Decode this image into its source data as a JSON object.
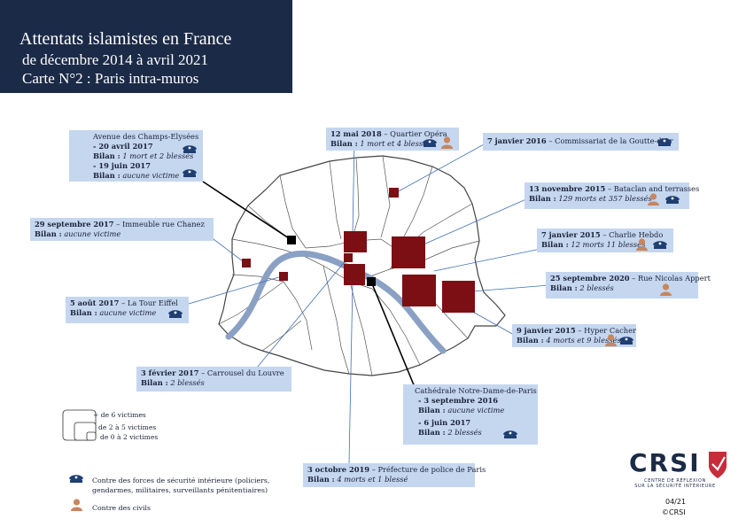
{
  "title": {
    "line1": "Attentats islamistes en France",
    "line2": "de décembre 2014 à avril 2021",
    "line3": "Carte N°2 : Paris intra-muros"
  },
  "events": {
    "champs": {
      "place": "Avenue des Champs-Elysées",
      "date1": "- 20 avril 2017",
      "bilan1_label": "Bilan :",
      "bilan1": "1 mort et 2 blessés",
      "date2": "- 19 juin 2017",
      "bilan2_label": "Bilan :",
      "bilan2": "aucune victime"
    },
    "chanez": {
      "date": "29 septembre 2017",
      "place": "– Immeuble rue Chanez",
      "bilan_label": "Bilan :",
      "bilan": "aucune victime"
    },
    "eiffel": {
      "date": "5 août 2017",
      "place": "– La Tour Eiffel",
      "bilan_label": "Bilan :",
      "bilan": "aucune victime"
    },
    "louvre": {
      "date": "3 février 2017",
      "place": "– Carrousel du Louvre",
      "bilan_label": "Bilan :",
      "bilan": "2 blessés"
    },
    "opera": {
      "date": "12 mai 2018",
      "place": "– Quartier Opéra",
      "bilan_label": "Bilan :",
      "bilan": "1 mort et 4 blessés"
    },
    "goutte": {
      "date": "7 janvier 2016",
      "place": "– Commissariat de la Goutte-d'Or"
    },
    "bataclan": {
      "date": "13 novembre 2015",
      "place": "– Bataclan and terrasses",
      "bilan_label": "Bilan :",
      "bilan": "129 morts et 357 blessés"
    },
    "hebdo": {
      "date": "7 janvier 2015",
      "place": "– Charlie Hebdo",
      "bilan_label": "Bilan :",
      "bilan": "12 morts 11 blessés"
    },
    "appert": {
      "date": "25 septembre 2020",
      "place": "– Rue Nicolas Appert",
      "bilan_label": "Bilan :",
      "bilan": "2 blessés"
    },
    "cacher": {
      "date": "9 janvier 2015",
      "place": "– Hyper Cacher",
      "bilan_label": "Bilan :",
      "bilan": "4 morts et 9 blessés"
    },
    "notredame": {
      "place": "Cathédrale Notre-Dame-de-Paris",
      "date1": "- 3 septembre 2016",
      "bilan1_label": "Bilan :",
      "bilan1": "aucune victime",
      "date2": "- 6 juin 2017",
      "bilan2_label": "Bilan :",
      "bilan2": "2 blessés"
    },
    "prefecture": {
      "date": "3 octobre 2019",
      "place": "– Préfecture de police de Paris",
      "bilan_label": "Bilan :",
      "bilan": "4 morts et 1 blessé"
    }
  },
  "size_legend": {
    "large": "+ de 6 victimes",
    "medium": "de 2 à 5 victimes",
    "small": "de 0 à 2 victimes"
  },
  "icon_legend": {
    "forces_line1": "Contre des forces de sécurité intérieure (policiers,",
    "forces_line2": "gendarmes, militaires, surveillants pénitentiaires)",
    "civils": "Contre des civils"
  },
  "logo": {
    "name": "CRSI",
    "sub1": "CENTRE DE RÉFLEXION",
    "sub2": "SUR LA SÉCURITÉ INTÉRIEURE"
  },
  "footer": {
    "date": "04/21",
    "copyright": "©CRSI"
  },
  "colors": {
    "title_bg": "#1b2a47",
    "label_bg": "#c5d6ef",
    "marker": "#7b0f14",
    "river": "#8aa1c4",
    "icon_police": "#1f3f73",
    "icon_civil": "#c9855c"
  }
}
